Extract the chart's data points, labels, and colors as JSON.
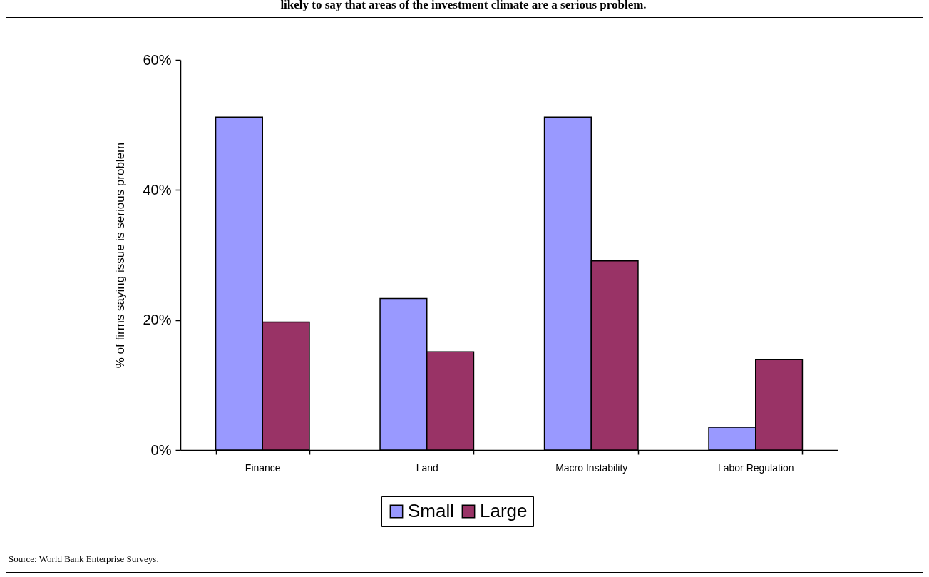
{
  "chart_data": {
    "type": "bar",
    "title": "likely to say that areas of the investment climate are a serious problem.",
    "ylabel": "% of firms saying issue is serious problem",
    "categories": [
      "Finance",
      "Land",
      "Macro Instability",
      "Labor Regulation"
    ],
    "series": [
      {
        "name": "Small",
        "color": "#9999ff",
        "values": [
          51.2,
          23.3,
          51.2,
          3.5
        ]
      },
      {
        "name": "Large",
        "color": "#993366",
        "values": [
          19.7,
          15.1,
          29.1,
          13.9
        ]
      }
    ],
    "ylim": [
      0,
      60
    ],
    "yticks": [
      {
        "value": 0,
        "label": "0%"
      },
      {
        "value": 20,
        "label": "20%"
      },
      {
        "value": 40,
        "label": "40%"
      },
      {
        "value": 60,
        "label": "60%"
      }
    ],
    "grid": false,
    "legend": "bottom",
    "annotations": [
      "Source: World Bank Enterprise Surveys."
    ]
  }
}
